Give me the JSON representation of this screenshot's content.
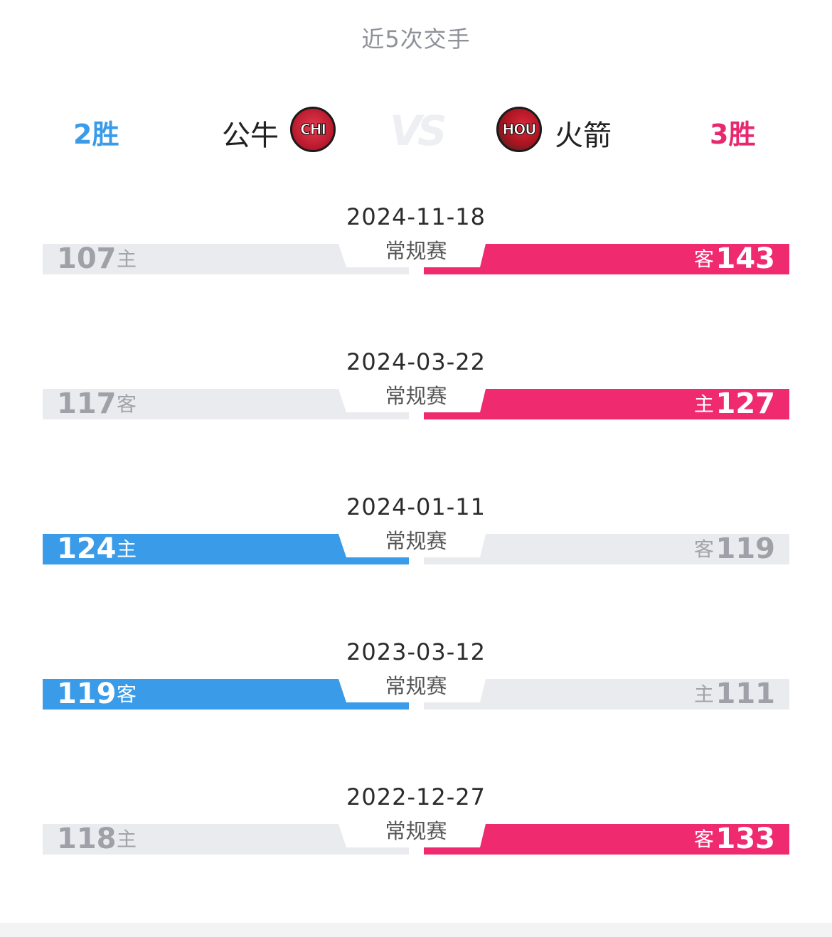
{
  "title": "近5次交手",
  "left_team": {
    "name": "公牛",
    "abbr": "CHI",
    "wins": "2胜",
    "color": "#3a9be8"
  },
  "right_team": {
    "name": "火箭",
    "abbr": "HOU",
    "wins": "3胜",
    "color": "#ef2a6f"
  },
  "vs_label": "VS",
  "matches": [
    {
      "date": "2024-11-18",
      "type": "常规赛",
      "left_score": "107",
      "left_tag": "主",
      "right_score": "143",
      "right_tag": "客",
      "winner": "right"
    },
    {
      "date": "2024-03-22",
      "type": "常规赛",
      "left_score": "117",
      "left_tag": "客",
      "right_score": "127",
      "right_tag": "主",
      "winner": "right"
    },
    {
      "date": "2024-01-11",
      "type": "常规赛",
      "left_score": "124",
      "left_tag": "主",
      "right_score": "119",
      "right_tag": "客",
      "winner": "left"
    },
    {
      "date": "2023-03-12",
      "type": "常规赛",
      "left_score": "119",
      "left_tag": "客",
      "right_score": "111",
      "right_tag": "主",
      "winner": "left"
    },
    {
      "date": "2022-12-27",
      "type": "常规赛",
      "left_score": "118",
      "left_tag": "主",
      "right_score": "133",
      "right_tag": "客",
      "winner": "right"
    }
  ]
}
